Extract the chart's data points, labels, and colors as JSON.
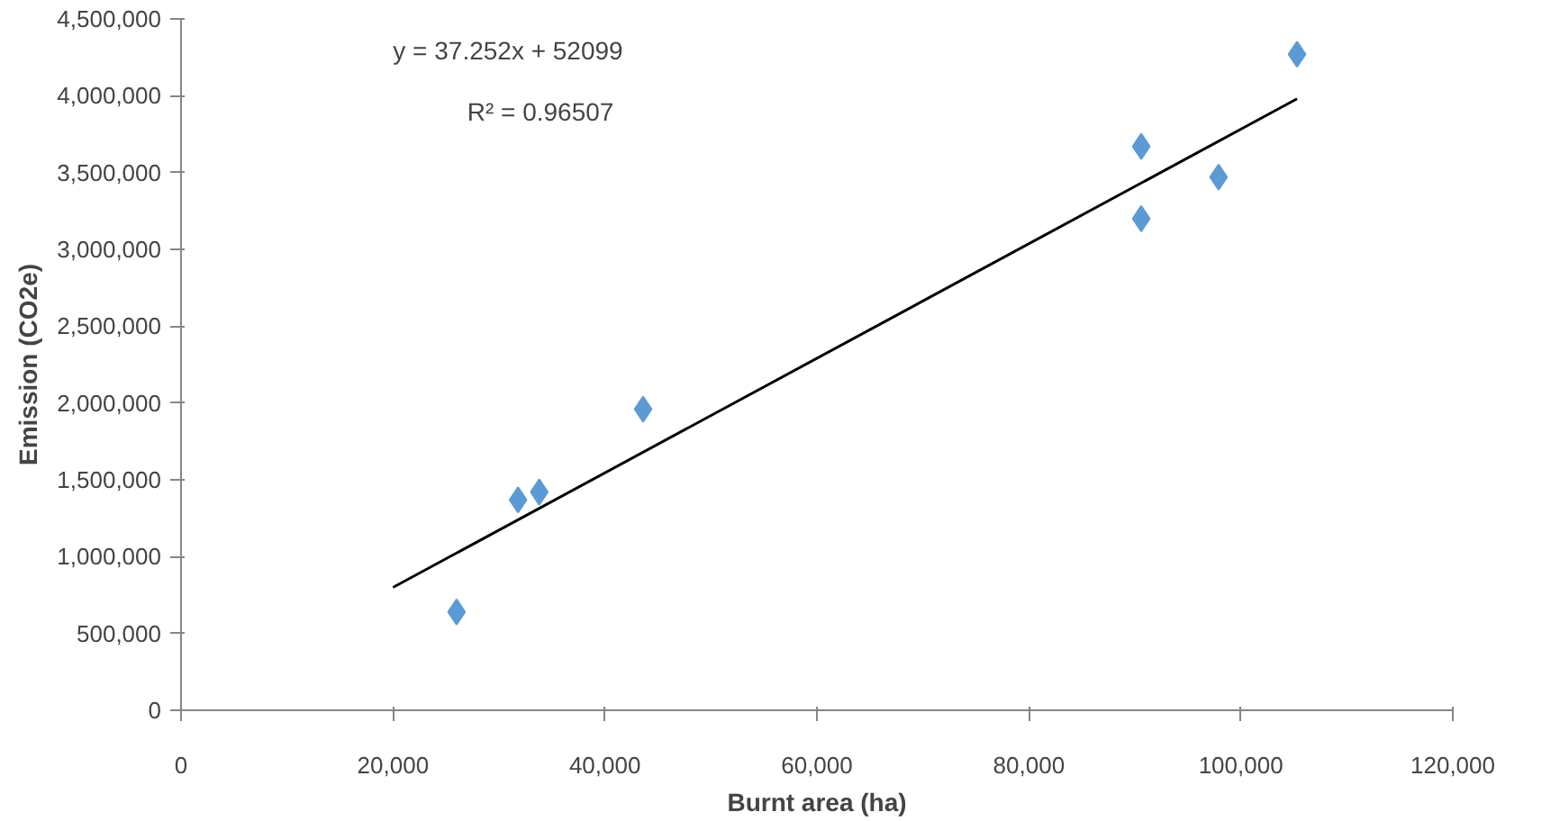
{
  "chart_data": {
    "type": "scatter",
    "xlabel": "Burnt area (ha)",
    "ylabel": "Emission (CO2e)",
    "annotations": [
      "y = 37.252x + 52099",
      "R² = 0.96507"
    ],
    "series": [
      {
        "color": "#5b9bd5",
        "marker": "diamond",
        "x": [
          26000,
          31800,
          33800,
          43600,
          90600,
          90600,
          97900,
          105300
        ],
        "values": [
          640000,
          1370000,
          1420000,
          1960000,
          3670000,
          3200000,
          3470000,
          4270000
        ]
      },
      {
        "type": "line",
        "color": "#000000",
        "x": [
          20000,
          105300
        ],
        "values": [
          800000,
          3980000
        ]
      }
    ],
    "xlim": [
      0,
      120000
    ],
    "ylim": [
      0,
      4500000
    ],
    "xticks": [
      {
        "value": 0,
        "label": "0"
      },
      {
        "value": 20000,
        "label": "20,000"
      },
      {
        "value": 40000,
        "label": "40,000"
      },
      {
        "value": 60000,
        "label": "60,000"
      },
      {
        "value": 80000,
        "label": "80,000"
      },
      {
        "value": 100000,
        "label": "100,000"
      },
      {
        "value": 120000,
        "label": "120,000"
      }
    ],
    "yticks": [
      {
        "value": 0,
        "label": "0"
      },
      {
        "value": 500000,
        "label": "500,000"
      },
      {
        "value": 1000000,
        "label": "1,000,000"
      },
      {
        "value": 1500000,
        "label": "1,500,000"
      },
      {
        "value": 2000000,
        "label": "2,000,000"
      },
      {
        "value": 2500000,
        "label": "2,500,000"
      },
      {
        "value": 3000000,
        "label": "3,000,000"
      },
      {
        "value": 3500000,
        "label": "3,500,000"
      },
      {
        "value": 4000000,
        "label": "4,000,000"
      },
      {
        "value": 4500000,
        "label": "4,500,000"
      }
    ],
    "grid": false,
    "line_style": "solid"
  }
}
